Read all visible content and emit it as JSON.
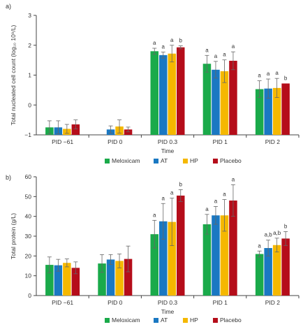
{
  "colors": {
    "series": [
      "#1aaa4a",
      "#1a78c2",
      "#f5b800",
      "#b50d1a"
    ],
    "axis": "#444444",
    "text": "#333333",
    "errorbar": "#666666"
  },
  "legend": {
    "items": [
      "Meloxicam",
      "AT",
      "HP",
      "Placebo"
    ]
  },
  "chart_data": [
    {
      "type": "bar",
      "panel_label": "a)",
      "ylabel": "Total nucleated cell count (log₁₀ 10⁹/L)",
      "xlabel": "Time",
      "categories": [
        "PID −61",
        "PID 0",
        "PID 0.3",
        "PID 1",
        "PID 2"
      ],
      "ylim": [
        -1,
        3
      ],
      "yticks": [
        -1,
        0,
        1,
        2,
        3
      ],
      "grid": false,
      "legend_position": "bottom",
      "series": [
        {
          "name": "Meloxicam",
          "values": [
            -0.75,
            null,
            1.8,
            1.38,
            0.53
          ],
          "errors": [
            0.22,
            null,
            0.1,
            0.28,
            0.28
          ]
        },
        {
          "name": "AT",
          "values": [
            -0.75,
            -0.82,
            1.67,
            1.18,
            0.55
          ],
          "errors": [
            0.22,
            0.12,
            0.1,
            0.28,
            0.32
          ]
        },
        {
          "name": "HP",
          "values": [
            -0.8,
            -0.72,
            1.72,
            1.13,
            0.57
          ],
          "errors": [
            0.15,
            0.22,
            0.28,
            0.38,
            0.32
          ]
        },
        {
          "name": "Placebo",
          "values": [
            -0.65,
            -0.82,
            1.93,
            1.48,
            0.72
          ],
          "errors": [
            0.15,
            0.08,
            0.05,
            0.3,
            0.0
          ]
        }
      ],
      "annotations": [
        {
          "category": "PID 0.3",
          "labels": [
            "a",
            "a",
            "a",
            "b"
          ]
        },
        {
          "category": "PID 1",
          "labels": [
            "a",
            "a",
            "a",
            "a"
          ]
        },
        {
          "category": "PID 2",
          "labels": [
            "a",
            "a",
            "a",
            "b"
          ]
        }
      ]
    },
    {
      "type": "bar",
      "panel_label": "b)",
      "ylabel": "Total protein (g/L)",
      "xlabel": "Time",
      "categories": [
        "PID −61",
        "PID 0",
        "PID 0.3",
        "PID 1",
        "PID 2"
      ],
      "ylim": [
        0,
        60
      ],
      "yticks": [
        0,
        10,
        20,
        30,
        40,
        50,
        60
      ],
      "grid": false,
      "legend_position": "bottom",
      "series": [
        {
          "name": "Meloxicam",
          "values": [
            15.5,
            16.2,
            31,
            36,
            21
          ],
          "errors": [
            4,
            4.5,
            7,
            5,
            1.5
          ]
        },
        {
          "name": "AT",
          "values": [
            15.3,
            18.2,
            37.5,
            40.5,
            24
          ],
          "errors": [
            3,
            2.5,
            9,
            4.5,
            4
          ]
        },
        {
          "name": "HP",
          "values": [
            16.5,
            17.5,
            37.2,
            40.5,
            25.5
          ],
          "errors": [
            2,
            3.5,
            12,
            8,
            3.5
          ]
        },
        {
          "name": "Placebo",
          "values": [
            14,
            18.5,
            50.5,
            48,
            28.8
          ],
          "errors": [
            3,
            6.5,
            3,
            8,
            3.5
          ]
        }
      ],
      "annotations": [
        {
          "category": "PID 0.3",
          "labels": [
            "a",
            "a",
            "a",
            "b"
          ]
        },
        {
          "category": "PID 1",
          "labels": [
            "a",
            "a",
            "a",
            "a"
          ]
        },
        {
          "category": "PID 2",
          "labels": [
            "a",
            "a,b",
            "a,b",
            "b"
          ]
        }
      ]
    }
  ]
}
